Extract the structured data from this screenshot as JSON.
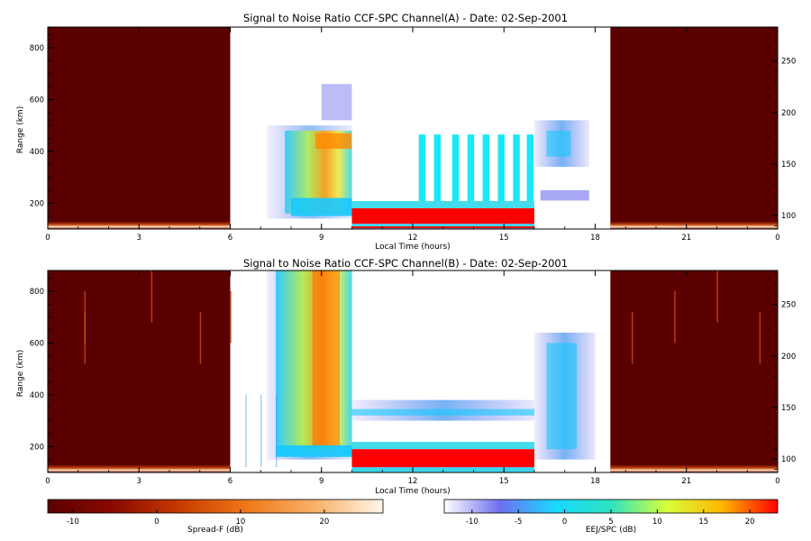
{
  "colors": {
    "background_night": "#5a0000",
    "spreadF_ramp": [
      "#5a0000",
      "#8b0a00",
      "#c83c00",
      "#f07a1a",
      "#f7b26a",
      "#fff6ea"
    ],
    "eej_ramp": [
      "#ffffff",
      "#6e6ef0",
      "#18d9ff",
      "#2ee3c0",
      "#d8ff3a",
      "#ffb400",
      "#ff0000"
    ]
  },
  "chart_data": [
    {
      "type": "heatmap",
      "title": "Signal to Noise Ratio CCF-SPC Channel(A) - Date: 02-Sep-2001",
      "xlabel": "Local Time (hours)",
      "ylabel": "Range (km)",
      "xlim": [
        0,
        24
      ],
      "ylim": [
        100,
        880
      ],
      "x_ticks": [
        "0",
        "3",
        "6",
        "9",
        "12",
        "15",
        "18",
        "21",
        "0"
      ],
      "y_ticks": [
        "200",
        "400",
        "600",
        "800"
      ],
      "right_axis": {
        "ylim": [
          87,
          283
        ],
        "ticks": [
          "100",
          "150",
          "200",
          "250"
        ]
      },
      "night_segments": [
        [
          0,
          6
        ],
        [
          18.5,
          24
        ]
      ],
      "day_segment": [
        6,
        18.5
      ],
      "features": {
        "evening_spread_f_hours": [
          7.2,
          10.0
        ],
        "evening_spread_f_range_km": [
          140,
          660
        ],
        "eej_hours": [
          10.0,
          16.0
        ],
        "eej_range_km": [
          120,
          180
        ],
        "interference_stripe_hours": [
          12.2,
          12.7,
          13.3,
          13.8,
          14.3,
          14.8,
          15.3,
          15.75
        ],
        "interference_top_km": 465,
        "post_sunset_hours": [
          16.0,
          17.8
        ],
        "post_sunset_range_km": [
          340,
          520
        ]
      }
    },
    {
      "type": "heatmap",
      "title": "Signal to Noise Ratio CCF-SPC Channel(B) - Date: 02-Sep-2001",
      "xlabel": "Local Time (hours)",
      "ylabel": "Range (km)",
      "xlim": [
        0,
        24
      ],
      "ylim": [
        100,
        880
      ],
      "x_ticks": [
        "0",
        "3",
        "6",
        "9",
        "12",
        "15",
        "18",
        "21",
        "0"
      ],
      "y_ticks": [
        "200",
        "400",
        "600",
        "800"
      ],
      "right_axis": {
        "ylim": [
          87,
          283
        ],
        "ticks": [
          "100",
          "150",
          "200",
          "250"
        ]
      },
      "night_segments": [
        [
          0,
          6
        ],
        [
          18.5,
          24
        ]
      ],
      "day_segment": [
        6,
        18.5
      ],
      "features": {
        "evening_spread_f_hours": [
          7.0,
          10.0
        ],
        "evening_spread_f_range_km": [
          150,
          880
        ],
        "eej_hours": [
          10.0,
          16.0
        ],
        "eej_range_km": [
          120,
          190
        ],
        "upper_layer_range_km": [
          300,
          380
        ],
        "post_sunset_hours": [
          16.0,
          18.0
        ],
        "post_sunset_range_km": [
          150,
          640
        ]
      }
    }
  ],
  "colorbars": [
    {
      "label": "Spread-F (dB)",
      "range": [
        -13,
        27
      ],
      "ticks": [
        "-10",
        "0",
        "10",
        "20"
      ]
    },
    {
      "label": "EEJ/SPC (dB)",
      "range": [
        -13,
        23
      ],
      "ticks": [
        "-10",
        "-5",
        "0",
        "5",
        "10",
        "15",
        "20"
      ]
    }
  ]
}
